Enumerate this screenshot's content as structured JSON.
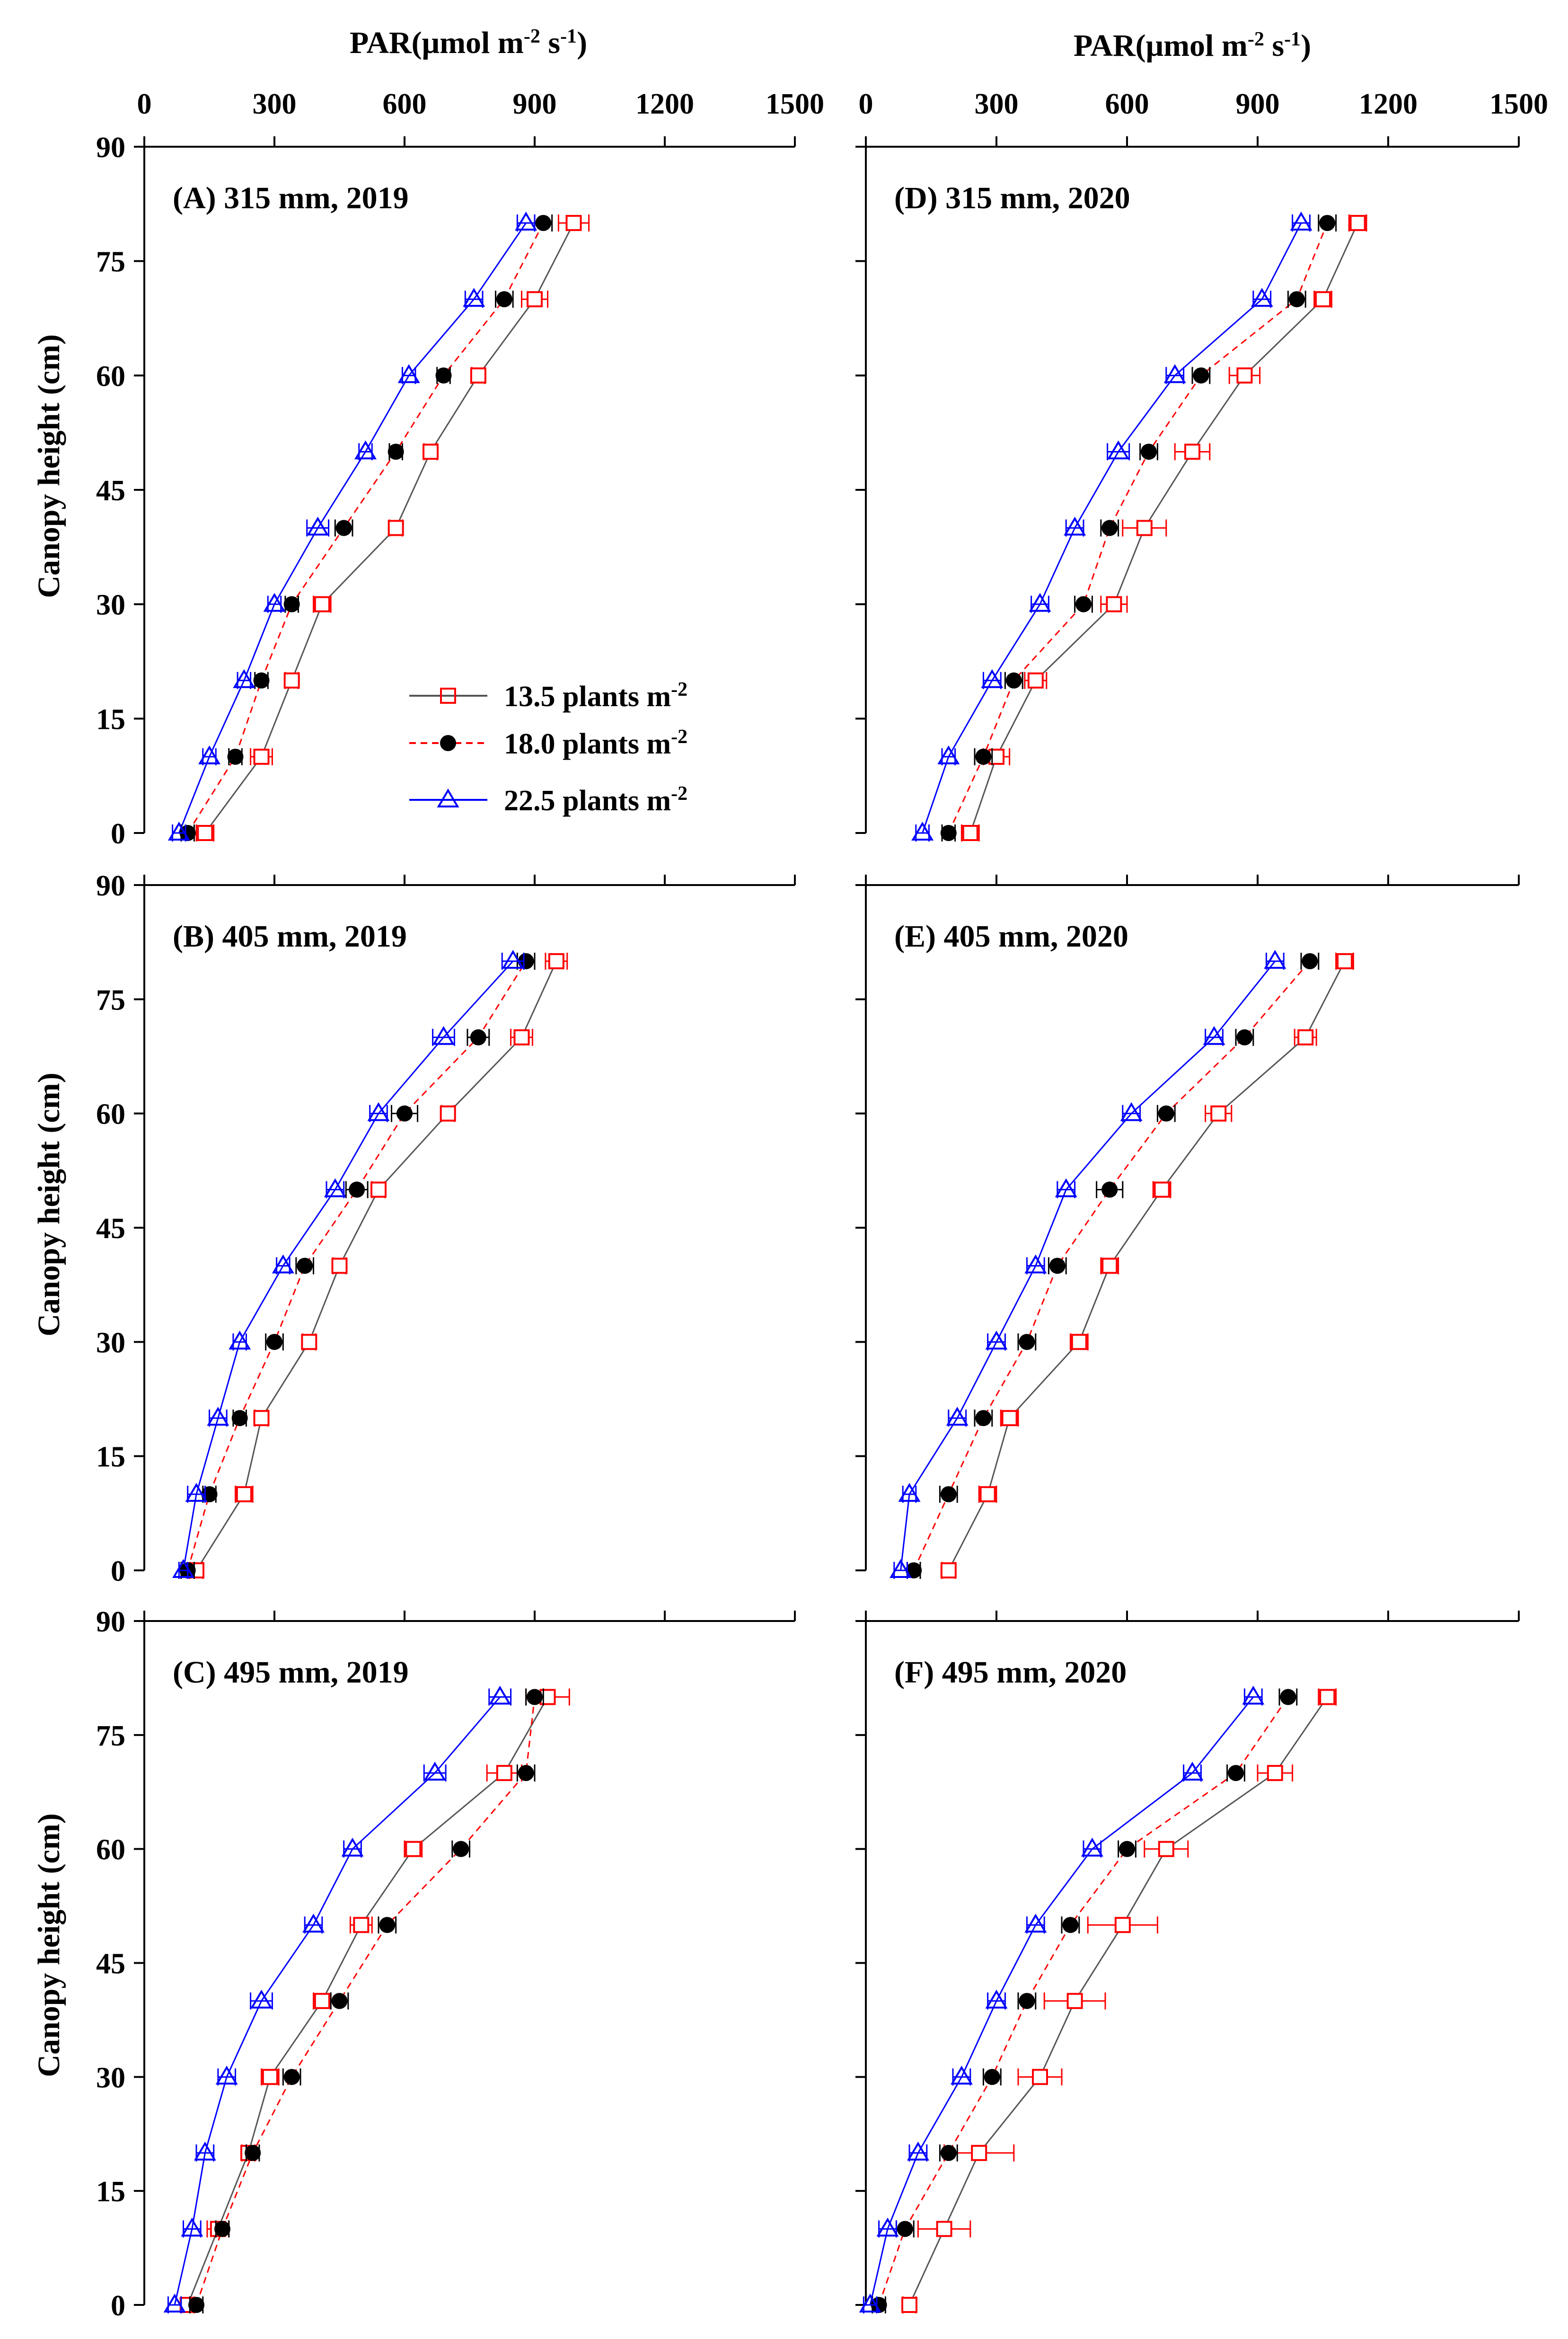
{
  "figure": {
    "x_axis_title_main": "PAR(μmol m",
    "x_axis_title_sup1": "-2",
    "x_axis_title_mid": " s",
    "x_axis_title_sup2": "-1",
    "x_axis_title_end": ")",
    "y_axis_title": "Canopy height (cm)"
  },
  "legend": {
    "entries": [
      {
        "label": "13.5 plants m",
        "sup": "-2"
      },
      {
        "label": "18.0 plants m",
        "sup": "-2"
      },
      {
        "label": "22.5 plants m",
        "sup": "-2"
      }
    ]
  },
  "chart_data": [
    {
      "type": "line",
      "title": "(A) 315 mm, 2019",
      "xlabel": "PAR(μmol m-2 s-1)",
      "ylabel": "Canopy height (cm)",
      "xlim": [
        0,
        1500
      ],
      "ylim": [
        0,
        90
      ],
      "xticks": [
        0,
        300,
        600,
        900,
        1200,
        1500
      ],
      "yticks": [
        0,
        15,
        30,
        45,
        60,
        75,
        90
      ],
      "y": [
        0,
        10,
        20,
        30,
        40,
        50,
        60,
        70,
        80
      ],
      "series": [
        {
          "name": "13.5 plants m-2",
          "color": "#ff0000",
          "marker": "open-square",
          "line": "solid",
          "line_color": "#555555",
          "x": [
            140,
            270,
            340,
            410,
            580,
            660,
            770,
            900,
            990
          ],
          "err": [
            20,
            25,
            15,
            20,
            15,
            15,
            15,
            30,
            35
          ]
        },
        {
          "name": "18.0 plants m-2",
          "color": "#000000",
          "marker": "filled-circle",
          "line": "dashed",
          "line_color": "#ff0000",
          "x": [
            100,
            210,
            270,
            340,
            460,
            580,
            690,
            830,
            920
          ],
          "err": [
            15,
            15,
            15,
            15,
            20,
            15,
            15,
            20,
            20
          ]
        },
        {
          "name": "22.5 plants m-2",
          "color": "#0000ff",
          "marker": "open-triangle",
          "line": "solid",
          "line_color": "#0000ff",
          "x": [
            80,
            150,
            230,
            300,
            400,
            510,
            610,
            760,
            880
          ],
          "err": [
            15,
            15,
            15,
            15,
            25,
            15,
            15,
            20,
            20
          ]
        }
      ]
    },
    {
      "type": "line",
      "title": "(B) 405 mm, 2019",
      "xlabel": "PAR(μmol m-2 s-1)",
      "ylabel": "Canopy height (cm)",
      "xlim": [
        0,
        1500
      ],
      "ylim": [
        0,
        90
      ],
      "xticks": [
        0,
        300,
        600,
        900,
        1200,
        1500
      ],
      "yticks": [
        0,
        15,
        30,
        45,
        60,
        75,
        90
      ],
      "y": [
        0,
        10,
        20,
        30,
        40,
        50,
        60,
        70,
        80
      ],
      "series": [
        {
          "name": "13.5 plants m-2",
          "color": "#ff0000",
          "marker": "open-square",
          "line": "solid",
          "line_color": "#555555",
          "x": [
            120,
            230,
            270,
            380,
            450,
            540,
            700,
            870,
            950
          ],
          "err": [
            15,
            20,
            15,
            15,
            15,
            15,
            15,
            25,
            25
          ]
        },
        {
          "name": "18.0 plants m-2",
          "color": "#000000",
          "marker": "filled-circle",
          "line": "dashed",
          "line_color": "#ff0000",
          "x": [
            100,
            150,
            220,
            300,
            370,
            490,
            600,
            770,
            880
          ],
          "err": [
            15,
            15,
            15,
            20,
            20,
            25,
            30,
            25,
            20
          ]
        },
        {
          "name": "22.5 plants m-2",
          "color": "#0000ff",
          "marker": "open-triangle",
          "line": "solid",
          "line_color": "#0000ff",
          "x": [
            90,
            120,
            170,
            220,
            320,
            440,
            540,
            690,
            850
          ],
          "err": [
            10,
            20,
            20,
            15,
            15,
            20,
            20,
            25,
            25
          ]
        }
      ]
    },
    {
      "type": "line",
      "title": "(C) 495 mm, 2019",
      "xlabel": "PAR(μmol m-2 s-1)",
      "ylabel": "Canopy height (cm)",
      "xlim": [
        0,
        1500
      ],
      "ylim": [
        0,
        90
      ],
      "xticks": [
        0,
        300,
        600,
        900,
        1200,
        1500
      ],
      "yticks": [
        0,
        15,
        30,
        45,
        60,
        75,
        90
      ],
      "y": [
        0,
        10,
        20,
        30,
        40,
        50,
        60,
        70,
        80
      ],
      "series": [
        {
          "name": "13.5 plants m-2",
          "color": "#ff0000",
          "marker": "open-square",
          "line": "solid",
          "line_color": "#555555",
          "x": [
            100,
            170,
            240,
            290,
            410,
            500,
            620,
            830,
            930
          ],
          "err": [
            15,
            25,
            15,
            20,
            20,
            25,
            20,
            40,
            50
          ]
        },
        {
          "name": "18.0 plants m-2",
          "color": "#000000",
          "marker": "filled-circle",
          "line": "dashed",
          "line_color": "#ff0000",
          "x": [
            120,
            180,
            250,
            340,
            450,
            560,
            730,
            880,
            900
          ],
          "err": [
            15,
            15,
            15,
            20,
            20,
            20,
            20,
            20,
            20
          ]
        },
        {
          "name": "22.5 plants m-2",
          "color": "#0000ff",
          "marker": "open-triangle",
          "line": "solid",
          "line_color": "#0000ff",
          "x": [
            70,
            110,
            140,
            190,
            270,
            390,
            480,
            670,
            820
          ],
          "err": [
            15,
            20,
            20,
            20,
            25,
            20,
            20,
            25,
            25
          ]
        }
      ]
    },
    {
      "type": "line",
      "title": "(D) 315 mm, 2020",
      "xlabel": "PAR(μmol m-2 s-1)",
      "ylabel": "Canopy height (cm)",
      "xlim": [
        0,
        1500
      ],
      "ylim": [
        0,
        90
      ],
      "xticks": [
        0,
        300,
        600,
        900,
        1200,
        1500
      ],
      "yticks": [
        0,
        15,
        30,
        45,
        60,
        75,
        90
      ],
      "y": [
        0,
        10,
        20,
        30,
        40,
        50,
        60,
        70,
        80
      ],
      "series": [
        {
          "name": "13.5 plants m-2",
          "color": "#ff0000",
          "marker": "open-square",
          "line": "solid",
          "line_color": "#555555",
          "x": [
            240,
            300,
            390,
            570,
            640,
            750,
            870,
            1050,
            1130
          ],
          "err": [
            20,
            30,
            25,
            30,
            50,
            40,
            35,
            20,
            20
          ]
        },
        {
          "name": "18.0 plants m-2",
          "color": "#000000",
          "marker": "filled-circle",
          "line": "dashed",
          "line_color": "#ff0000",
          "x": [
            190,
            270,
            340,
            500,
            560,
            650,
            770,
            990,
            1060
          ],
          "err": [
            15,
            20,
            20,
            20,
            20,
            20,
            20,
            20,
            20
          ]
        },
        {
          "name": "22.5 plants m-2",
          "color": "#0000ff",
          "marker": "open-triangle",
          "line": "solid",
          "line_color": "#0000ff",
          "x": [
            130,
            190,
            290,
            400,
            480,
            580,
            710,
            910,
            1000
          ],
          "err": [
            15,
            15,
            20,
            20,
            20,
            25,
            20,
            20,
            20
          ]
        }
      ]
    },
    {
      "type": "line",
      "title": "(E) 405 mm, 2020",
      "xlabel": "PAR(μmol m-2 s-1)",
      "ylabel": "Canopy height (cm)",
      "xlim": [
        0,
        1500
      ],
      "ylim": [
        0,
        90
      ],
      "xticks": [
        0,
        300,
        600,
        900,
        1200,
        1500
      ],
      "yticks": [
        0,
        15,
        30,
        45,
        60,
        75,
        90
      ],
      "y": [
        0,
        10,
        20,
        30,
        40,
        50,
        60,
        70,
        80
      ],
      "series": [
        {
          "name": "13.5 plants m-2",
          "color": "#ff0000",
          "marker": "open-square",
          "line": "solid",
          "line_color": "#555555",
          "x": [
            190,
            280,
            330,
            490,
            560,
            680,
            810,
            1010,
            1100
          ],
          "err": [
            15,
            20,
            20,
            20,
            20,
            20,
            30,
            25,
            20
          ]
        },
        {
          "name": "18.0 plants m-2",
          "color": "#000000",
          "marker": "filled-circle",
          "line": "dashed",
          "line_color": "#ff0000",
          "x": [
            110,
            190,
            270,
            370,
            440,
            560,
            690,
            870,
            1020
          ],
          "err": [
            15,
            20,
            20,
            20,
            20,
            30,
            20,
            20,
            20
          ]
        },
        {
          "name": "22.5 plants m-2",
          "color": "#0000ff",
          "marker": "open-triangle",
          "line": "solid",
          "line_color": "#0000ff",
          "x": [
            80,
            100,
            210,
            300,
            390,
            460,
            610,
            800,
            940
          ],
          "err": [
            15,
            15,
            20,
            20,
            20,
            20,
            20,
            20,
            20
          ]
        }
      ]
    },
    {
      "type": "line",
      "title": "(F) 495 mm, 2020",
      "xlabel": "PAR(μmol m-2 s-1)",
      "ylabel": "Canopy height (cm)",
      "xlim": [
        0,
        1500
      ],
      "ylim": [
        0,
        90
      ],
      "xticks": [
        0,
        300,
        600,
        900,
        1200,
        1500
      ],
      "yticks": [
        0,
        15,
        30,
        45,
        60,
        75,
        90
      ],
      "y": [
        0,
        10,
        20,
        30,
        40,
        50,
        60,
        70,
        80
      ],
      "series": [
        {
          "name": "13.5 plants m-2",
          "color": "#ff0000",
          "marker": "open-square",
          "line": "solid",
          "line_color": "#555555",
          "x": [
            100,
            180,
            260,
            400,
            480,
            590,
            690,
            940,
            1060
          ],
          "err": [
            15,
            60,
            80,
            50,
            70,
            80,
            50,
            40,
            20
          ]
        },
        {
          "name": "18.0 plants m-2",
          "color": "#000000",
          "marker": "filled-circle",
          "line": "dashed",
          "line_color": "#ff0000",
          "x": [
            30,
            90,
            190,
            290,
            370,
            470,
            600,
            850,
            970
          ],
          "err": [
            15,
            20,
            20,
            20,
            20,
            20,
            20,
            20,
            20
          ]
        },
        {
          "name": "22.5 plants m-2",
          "color": "#0000ff",
          "marker": "open-triangle",
          "line": "solid",
          "line_color": "#0000ff",
          "x": [
            10,
            50,
            120,
            220,
            300,
            390,
            520,
            750,
            890
          ],
          "err": [
            15,
            20,
            20,
            20,
            20,
            20,
            20,
            20,
            20
          ]
        }
      ]
    }
  ]
}
